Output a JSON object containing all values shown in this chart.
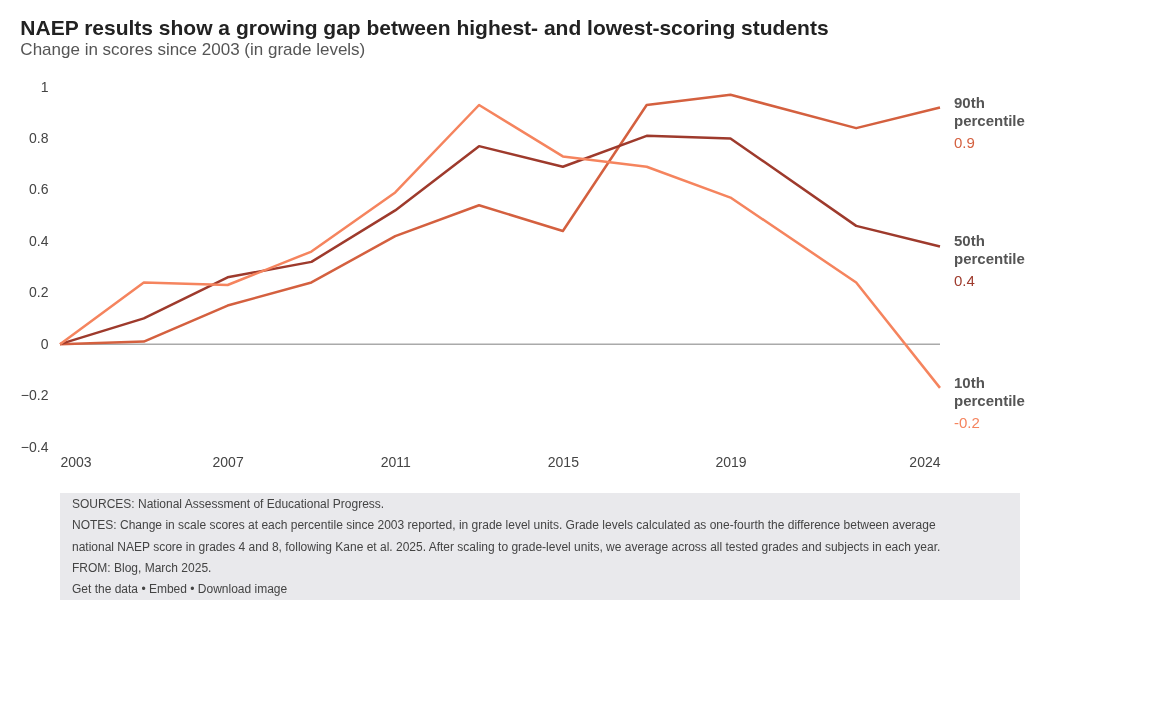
{
  "chart_data": {
    "type": "line",
    "title": "NAEP results show a growing gap between highest- and lowest-scoring students",
    "subtitle": "Change in scores since 2003 (in grade levels)",
    "x": [
      2003,
      2005,
      2007,
      2009,
      2011,
      2013,
      2015,
      2017,
      2019,
      2022,
      2024
    ],
    "xlim": [
      2003,
      2024
    ],
    "xticks": [
      2003,
      2007,
      2011,
      2015,
      2019,
      2024
    ],
    "ylim": [
      -0.4,
      1
    ],
    "yticks": [
      -0.4,
      -0.2,
      0,
      0.2,
      0.4,
      0.6,
      0.8,
      1
    ],
    "grid": false,
    "legend": false,
    "line_style": "solid",
    "marker": "none",
    "series": [
      {
        "name": "90th percentile",
        "color": "#d4603f",
        "values": [
          0,
          0.01,
          0.15,
          0.24,
          0.42,
          0.54,
          0.44,
          0.93,
          0.97,
          0.84,
          0.92
        ],
        "value_labels": [
          null,
          null,
          null,
          null,
          null,
          null,
          null,
          null,
          null,
          null,
          "0.9"
        ]
      },
      {
        "name": "50th percentile",
        "color": "#9e3a2c",
        "values": [
          0,
          0.1,
          0.26,
          0.32,
          0.52,
          0.77,
          0.69,
          0.81,
          0.8,
          0.46,
          0.38
        ],
        "value_labels": [
          null,
          null,
          null,
          null,
          null,
          null,
          null,
          null,
          null,
          null,
          "0.4"
        ]
      },
      {
        "name": "10th percentile",
        "color": "#f5845e",
        "values": [
          0,
          0.24,
          0.23,
          0.36,
          0.59,
          0.93,
          0.73,
          0.69,
          0.57,
          0.24,
          -0.17
        ],
        "value_labels": [
          null,
          null,
          null,
          null,
          null,
          null,
          null,
          null,
          null,
          null,
          "-0.2"
        ]
      }
    ],
    "ref_lines": [
      {
        "axis": "y",
        "value": 0,
        "color": "#aaaaaa"
      }
    ],
    "annotations": [
      "SOURCES: National Assessment of Educational Progress.",
      "NOTES: Change in scale scores at each percentile since 2003 reported, in grade level units. Grade levels calculated as one-fourth the difference between average national NAEP score in grades 4 and 8, following Kane et al. 2025. After scaling to grade-level units, we average across all tested grades and subjects in each year.",
      "FROM: Blog, March 2025.",
      "Get the data • Embed • Download image"
    ]
  }
}
